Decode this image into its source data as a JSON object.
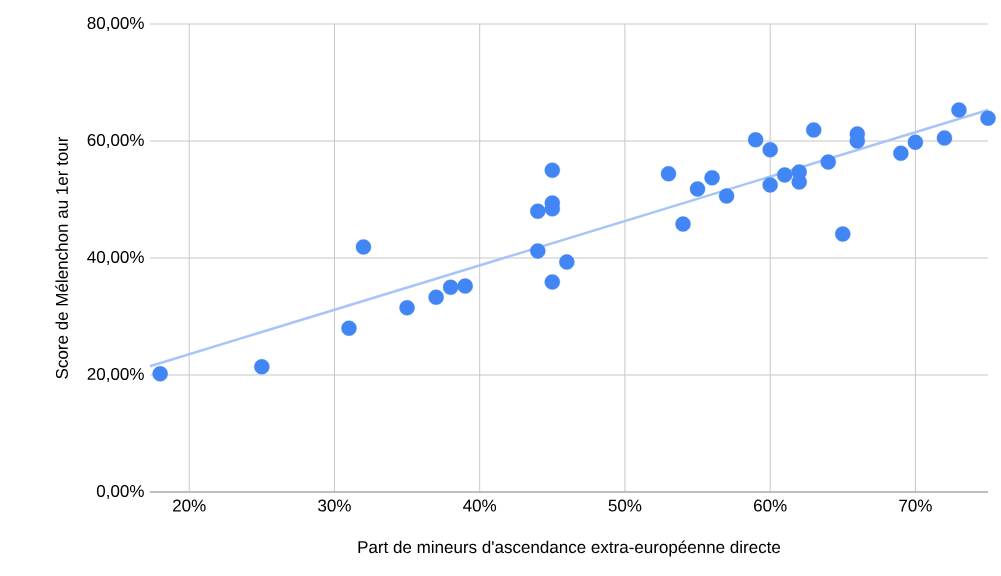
{
  "chart_data": {
    "type": "scatter",
    "xlabel": "Part de mineurs d'ascendance extra-européenne directe",
    "ylabel": "Score de Mélenchon au 1er tour",
    "xlim": [
      17.3,
      75
    ],
    "ylim": [
      0,
      80
    ],
    "xticks": [
      {
        "value": 20,
        "label": "20%"
      },
      {
        "value": 30,
        "label": "30%"
      },
      {
        "value": 40,
        "label": "40%"
      },
      {
        "value": 50,
        "label": "50%"
      },
      {
        "value": 60,
        "label": "60%"
      },
      {
        "value": 70,
        "label": "70%"
      }
    ],
    "yticks": [
      {
        "value": 0,
        "label": "0,00%"
      },
      {
        "value": 20,
        "label": "20,00%"
      },
      {
        "value": 40,
        "label": "40,00%"
      },
      {
        "value": 60,
        "label": "60,00%"
      },
      {
        "value": 80,
        "label": "80,00%"
      }
    ],
    "grid": true,
    "marker": "circle",
    "series": [
      {
        "type": "line",
        "marker": "none",
        "color": "#a8c5f7",
        "x": [
          17.3,
          75
        ],
        "values": [
          21.5,
          65.3
        ]
      },
      {
        "color": "#4285f4",
        "x": [
          18,
          25,
          31,
          32,
          35,
          37,
          38,
          39,
          44,
          44,
          45,
          45,
          45,
          45,
          46,
          53,
          54,
          55,
          56,
          57,
          59,
          60,
          60,
          61,
          62,
          62,
          63,
          64,
          65,
          66,
          66,
          69,
          70,
          72,
          73,
          75
        ],
        "values": [
          20.2,
          21.4,
          28.0,
          41.9,
          31.5,
          33.3,
          35.0,
          35.2,
          48.0,
          41.2,
          55.0,
          49.4,
          48.4,
          35.9,
          39.3,
          54.4,
          45.8,
          51.8,
          53.7,
          50.6,
          60.2,
          58.5,
          52.5,
          54.2,
          54.7,
          53.0,
          61.9,
          56.4,
          44.1,
          61.2,
          60.0,
          57.9,
          59.8,
          60.5,
          65.3,
          63.9
        ]
      }
    ]
  }
}
